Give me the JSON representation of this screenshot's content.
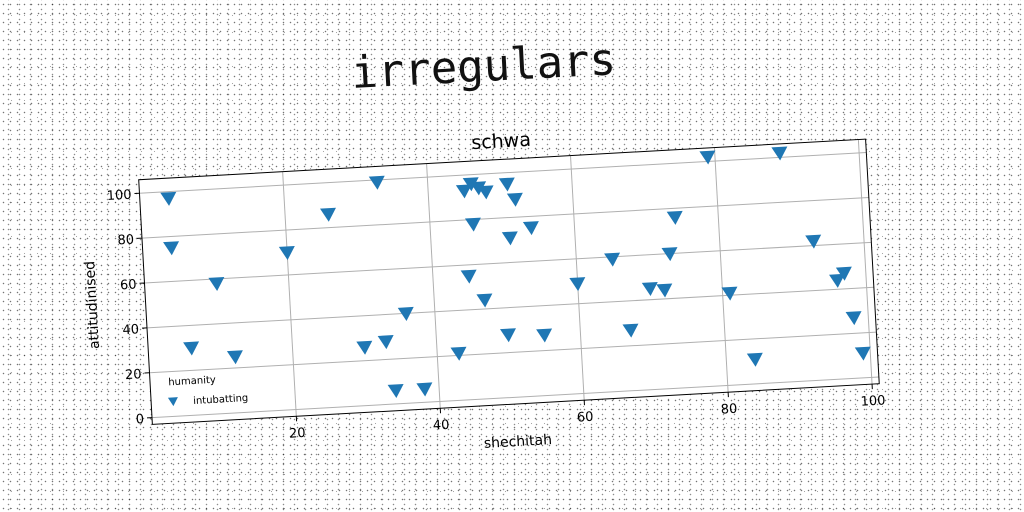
{
  "figure": {
    "suptitle": "irregulars"
  },
  "chart_data": {
    "type": "scatter",
    "title": "schwa",
    "xlabel": "shechitah",
    "ylabel": "attitudinised",
    "xlim": [
      0,
      101
    ],
    "ylim": [
      -3,
      106
    ],
    "xticks": [
      20,
      40,
      60,
      80,
      100
    ],
    "yticks": [
      0,
      20,
      40,
      60,
      80,
      100
    ],
    "grid": true,
    "legend": {
      "title": "humanity",
      "placement": "lower-left"
    },
    "marker": "triangle-down",
    "series": [
      {
        "name": "intubatting",
        "color": "#1f77b4",
        "points": [
          [
            4,
            97
          ],
          [
            4,
            75
          ],
          [
            6,
            30
          ],
          [
            10,
            58
          ],
          [
            12,
            25
          ],
          [
            20,
            70
          ],
          [
            26,
            86
          ],
          [
            30,
            26
          ],
          [
            33,
            99
          ],
          [
            33,
            28
          ],
          [
            34,
            6
          ],
          [
            36,
            40
          ],
          [
            38,
            6
          ],
          [
            43,
            21
          ],
          [
            45,
            55
          ],
          [
            45,
            93
          ],
          [
            46,
            96
          ],
          [
            46,
            78
          ],
          [
            47,
            94
          ],
          [
            47,
            44
          ],
          [
            48,
            92
          ],
          [
            50,
            28
          ],
          [
            51,
            71
          ],
          [
            51,
            95
          ],
          [
            52,
            88
          ],
          [
            54,
            75
          ],
          [
            55,
            27
          ],
          [
            60,
            49
          ],
          [
            65,
            59
          ],
          [
            67,
            27
          ],
          [
            70,
            45
          ],
          [
            72,
            44
          ],
          [
            73,
            60
          ],
          [
            74,
            76
          ],
          [
            79,
            102
          ],
          [
            81,
            41
          ],
          [
            84,
            11
          ],
          [
            89,
            102
          ],
          [
            93,
            62
          ],
          [
            96,
            44
          ],
          [
            97,
            47
          ],
          [
            98,
            27
          ],
          [
            99,
            11
          ]
        ]
      }
    ]
  }
}
